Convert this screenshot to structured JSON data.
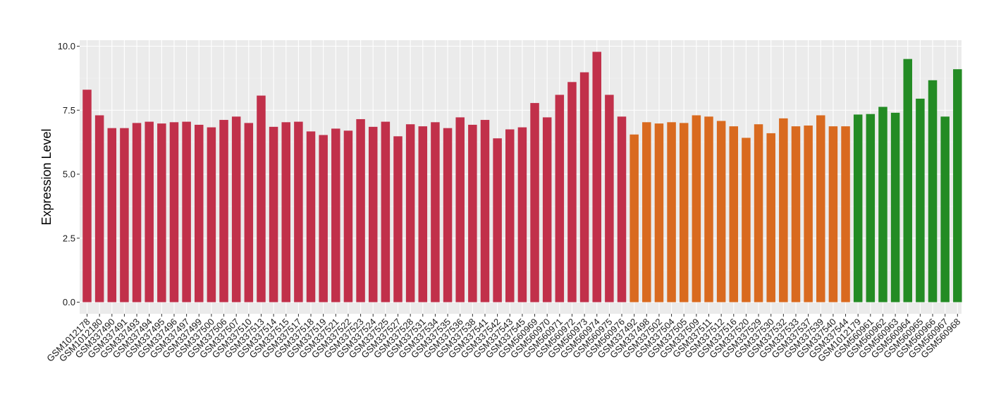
{
  "chart_data": {
    "type": "bar",
    "ylabel": "Expression Level",
    "xlabel": "",
    "ylim": [
      0,
      10
    ],
    "yticks": [
      "0.0",
      "2.5",
      "5.0",
      "7.5",
      "10.0"
    ],
    "grid": true,
    "colors": {
      "panel_background": "#ebebeb",
      "grid_major": "#ffffff",
      "group_1": "#c1304a",
      "group_2": "#d96a1f",
      "group_3": "#238b24"
    },
    "categories": [
      "GSM1012178",
      "GSM1012180",
      "GSM337490",
      "GSM337491",
      "GSM337493",
      "GSM337494",
      "GSM337495",
      "GSM337496",
      "GSM337497",
      "GSM337499",
      "GSM337500",
      "GSM337506",
      "GSM337507",
      "GSM337510",
      "GSM337513",
      "GSM337514",
      "GSM337515",
      "GSM337517",
      "GSM337518",
      "GSM337519",
      "GSM337521",
      "GSM337522",
      "GSM337523",
      "GSM337524",
      "GSM337525",
      "GSM337527",
      "GSM337528",
      "GSM337531",
      "GSM337534",
      "GSM337535",
      "GSM337536",
      "GSM337538",
      "GSM337541",
      "GSM337542",
      "GSM337543",
      "GSM337545",
      "GSM560969",
      "GSM560970",
      "GSM560971",
      "GSM560972",
      "GSM560973",
      "GSM560974",
      "GSM560975",
      "GSM560976",
      "GSM337492",
      "GSM337498",
      "GSM337502",
      "GSM337504",
      "GSM337505",
      "GSM337509",
      "GSM337511",
      "GSM337512",
      "GSM337516",
      "GSM337520",
      "GSM337529",
      "GSM337530",
      "GSM337532",
      "GSM337533",
      "GSM337537",
      "GSM337539",
      "GSM337540",
      "GSM337544",
      "GSM1012179",
      "GSM560961",
      "GSM560962",
      "GSM560963",
      "GSM560964",
      "GSM560965",
      "GSM560966",
      "GSM560967",
      "GSM560968"
    ],
    "values": [
      8.3,
      7.3,
      6.8,
      6.8,
      7.0,
      7.05,
      6.98,
      7.03,
      7.05,
      6.93,
      6.83,
      7.12,
      7.25,
      7.0,
      8.07,
      6.85,
      7.03,
      7.05,
      6.67,
      6.53,
      6.78,
      6.7,
      7.15,
      6.85,
      7.05,
      6.48,
      6.95,
      6.87,
      7.03,
      6.8,
      7.22,
      6.93,
      7.12,
      6.4,
      6.75,
      6.83,
      7.78,
      7.22,
      8.1,
      8.6,
      8.98,
      9.78,
      8.1,
      7.25,
      6.55,
      7.03,
      6.98,
      7.03,
      7.0,
      7.3,
      7.25,
      7.08,
      6.87,
      6.42,
      6.95,
      6.6,
      7.18,
      6.87,
      6.9,
      7.3,
      6.87,
      6.87,
      7.33,
      7.35,
      7.63,
      7.4,
      9.5,
      7.95,
      8.67,
      7.25,
      9.1
    ],
    "groups": [
      1,
      1,
      1,
      1,
      1,
      1,
      1,
      1,
      1,
      1,
      1,
      1,
      1,
      1,
      1,
      1,
      1,
      1,
      1,
      1,
      1,
      1,
      1,
      1,
      1,
      1,
      1,
      1,
      1,
      1,
      1,
      1,
      1,
      1,
      1,
      1,
      1,
      1,
      1,
      1,
      1,
      1,
      1,
      1,
      2,
      2,
      2,
      2,
      2,
      2,
      2,
      2,
      2,
      2,
      2,
      2,
      2,
      2,
      2,
      2,
      2,
      2,
      3,
      3,
      3,
      3,
      3,
      3,
      3,
      3,
      3
    ]
  }
}
